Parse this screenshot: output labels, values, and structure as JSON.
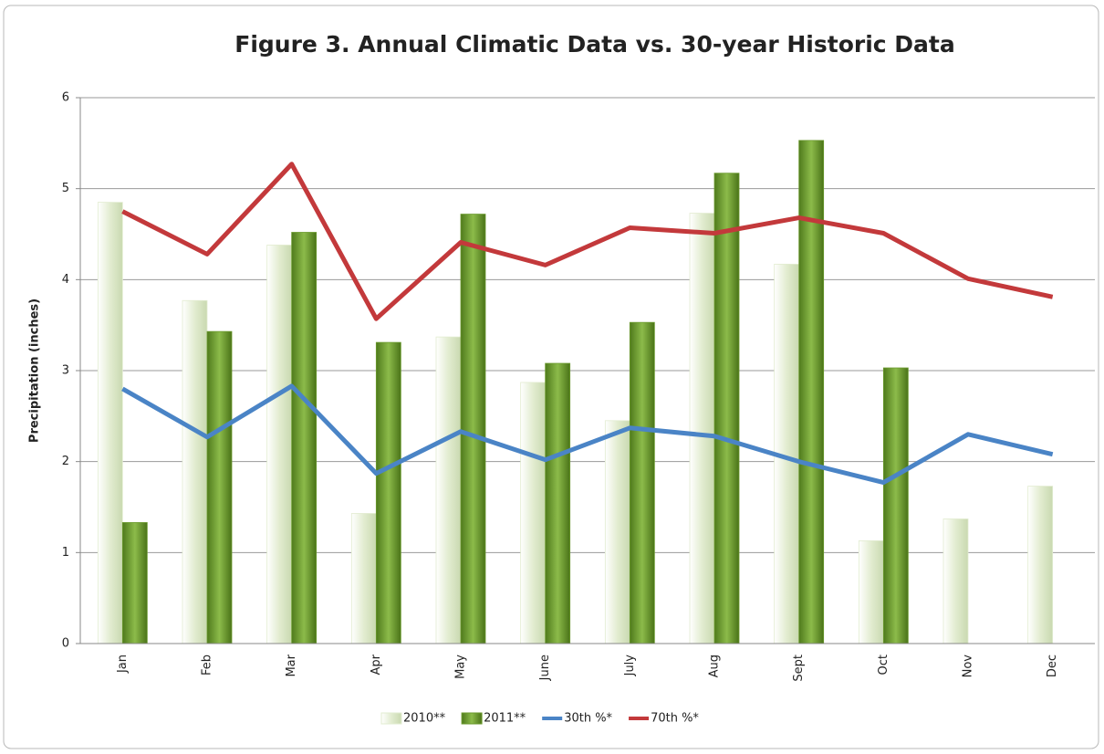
{
  "chart_data": {
    "type": "bar",
    "title": "Figure 3.  Annual Climatic Data vs. 30-year Historic Data",
    "y_label": "Precipitation (inches)",
    "categories": [
      "Jan",
      "Feb",
      "Mar",
      "Apr",
      "May",
      "June",
      "July",
      "Aug",
      "Sept",
      "Oct",
      "Nov",
      "Dec"
    ],
    "series": [
      {
        "name": "2010**",
        "type": "bar",
        "color": "#e2ecd0",
        "values": [
          4.85,
          3.77,
          4.38,
          1.43,
          3.37,
          2.87,
          2.45,
          4.73,
          4.17,
          1.13,
          1.37,
          1.73
        ]
      },
      {
        "name": "2011**",
        "type": "bar",
        "color": "#6b9a2e",
        "values": [
          1.33,
          3.43,
          4.52,
          3.31,
          4.72,
          3.08,
          3.53,
          5.17,
          5.53,
          3.03,
          null,
          null
        ]
      },
      {
        "name": "30th %*",
        "type": "line",
        "color": "#4a84c6",
        "values": [
          2.8,
          2.27,
          2.83,
          1.87,
          2.33,
          2.02,
          2.37,
          2.28,
          2.0,
          1.77,
          2.3,
          2.08
        ]
      },
      {
        "name": "70th %*",
        "type": "line",
        "color": "#c3393b",
        "values": [
          4.75,
          4.28,
          5.27,
          3.57,
          4.41,
          4.16,
          4.57,
          4.51,
          4.68,
          4.51,
          4.01,
          3.81
        ]
      }
    ],
    "ylim": [
      0,
      6
    ],
    "yticks": [
      0,
      1,
      2,
      3,
      4,
      5,
      6
    ],
    "grid": true,
    "legend": "bottom"
  }
}
